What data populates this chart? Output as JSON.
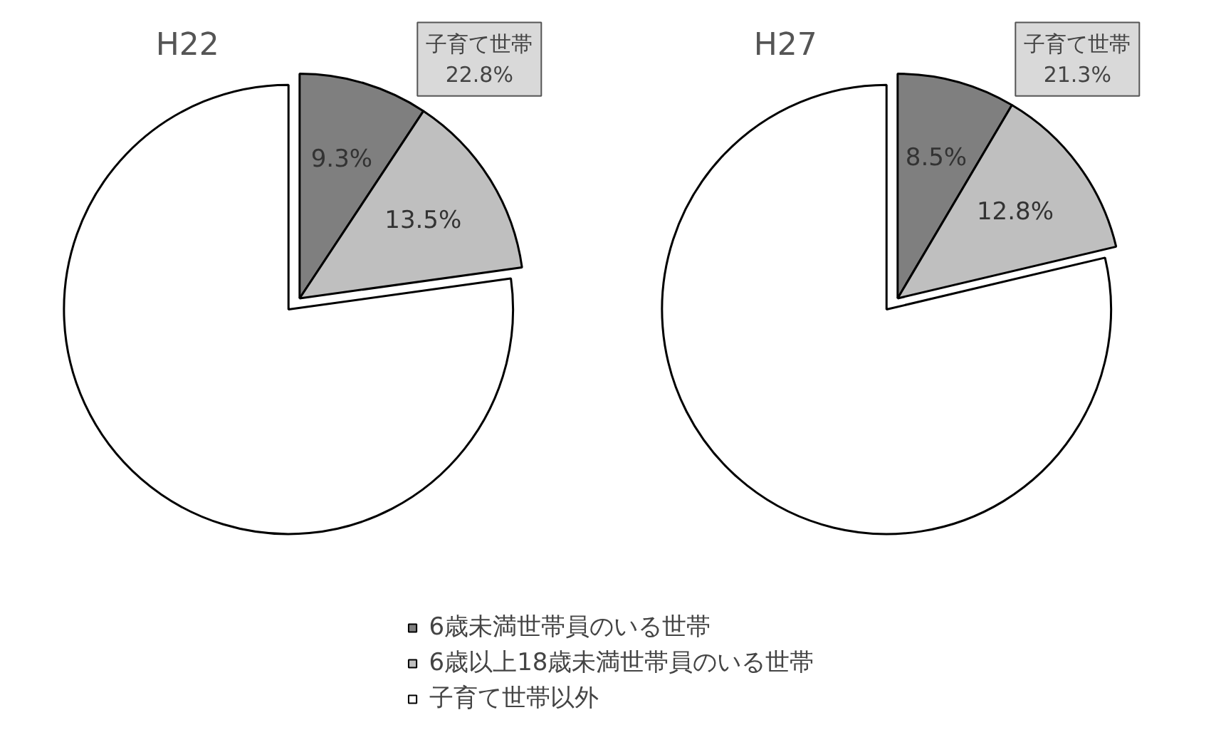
{
  "chart_data": [
    {
      "type": "pie",
      "title": "H22",
      "categories": [
        "6歳未満世帯員のいる世帯",
        "6歳以上18歳未満世帯員のいる世帯",
        "子育て世帯以外"
      ],
      "values": [
        9.3,
        13.5,
        77.2
      ],
      "colors": [
        "#7f7f7f",
        "#bfbfbf",
        "#ffffff"
      ],
      "value_labels": [
        "9.3%",
        "13.5%",
        null
      ],
      "annotations": [
        "子育て世帯\n22.8%"
      ],
      "legend": "bottom"
    },
    {
      "type": "pie",
      "title": "H27",
      "categories": [
        null,
        null,
        null
      ],
      "values": [
        8.5,
        12.8,
        78.7
      ],
      "colors": [
        "#7f7f7f",
        "#bfbfbf",
        "#ffffff"
      ],
      "value_labels": [
        "8.5%",
        "12.8%",
        null
      ],
      "annotations": [
        "子育て世帯\n21.3%"
      ]
    }
  ]
}
